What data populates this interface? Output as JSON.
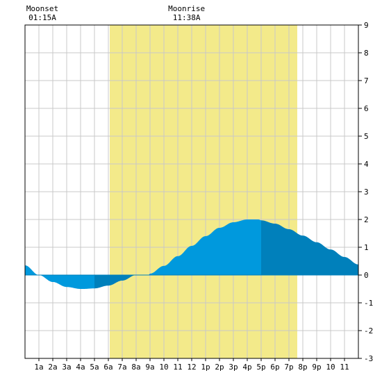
{
  "chart_data": {
    "type": "area",
    "title": "",
    "xlabel": "",
    "ylabel": "",
    "x_ticks": [
      "1a",
      "2a",
      "3a",
      "4a",
      "5a",
      "6a",
      "7a",
      "8a",
      "9a",
      "10",
      "11",
      "12",
      "1p",
      "2p",
      "3p",
      "4p",
      "5p",
      "6p",
      "7p",
      "8p",
      "9p",
      "10",
      "11"
    ],
    "y_ticks": [
      -3,
      -2,
      -1,
      0,
      1,
      2,
      3,
      4,
      5,
      6,
      7,
      8,
      9
    ],
    "xlim": [
      0,
      24
    ],
    "ylim": [
      -3,
      9
    ],
    "grid": true,
    "daylight": {
      "start": 6.1,
      "end": 19.6
    },
    "moon_events": [
      {
        "label": "Moonset",
        "time": "01:15A",
        "hour": 1.25
      },
      {
        "label": "Moonrise",
        "time": "11:38A",
        "hour": 11.63
      }
    ],
    "series": [
      {
        "x": [
          0,
          1,
          2,
          3,
          4,
          4.2,
          5,
          6,
          7,
          8,
          8.9,
          9,
          10,
          11,
          12,
          13,
          14,
          15,
          16,
          16.8,
          17,
          18,
          19,
          20,
          21,
          22,
          23,
          24
        ],
        "y": [
          0.35,
          0.0,
          -0.25,
          -0.43,
          -0.5,
          -0.5,
          -0.48,
          -0.38,
          -0.2,
          0.0,
          0.0,
          0.05,
          0.33,
          0.68,
          1.05,
          1.4,
          1.7,
          1.9,
          2.0,
          2.0,
          1.97,
          1.85,
          1.65,
          1.42,
          1.18,
          0.92,
          0.65,
          0.38
        ]
      }
    ],
    "band_colors": {
      "light": "#0099dd",
      "dark": "#0080bb"
    },
    "band_breaks": [
      0,
      5.0,
      9.0,
      17.0,
      24
    ],
    "colors": {
      "daylight": "#f3ea8a",
      "grid": "#c8c8c8",
      "axis": "#000000",
      "background": "#ffffff"
    }
  }
}
